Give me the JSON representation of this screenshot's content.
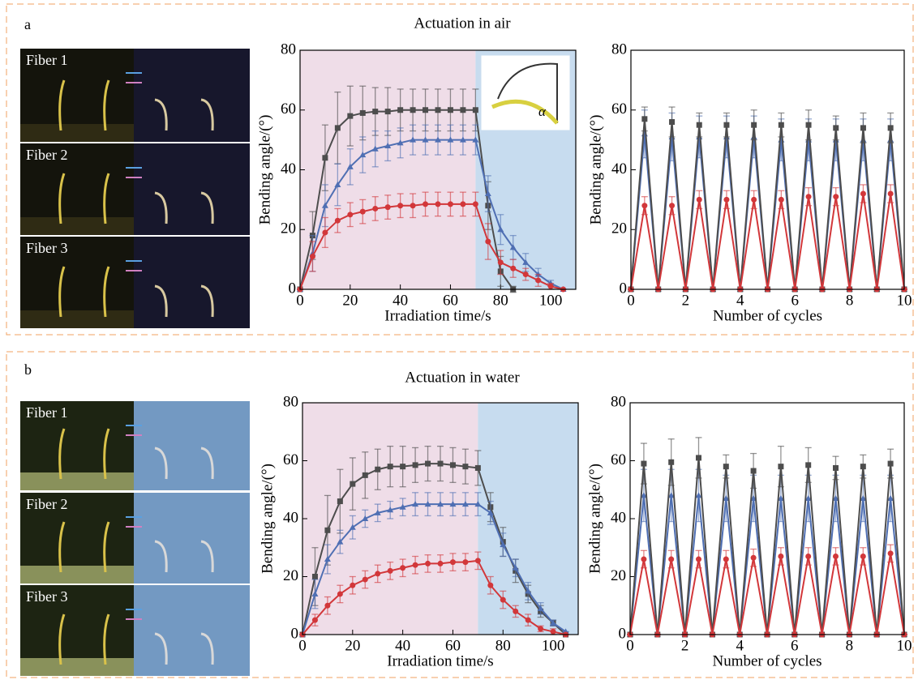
{
  "panels": [
    {
      "label": "a",
      "title": "Actuation in air",
      "photo_labels": [
        "Fiber 1",
        "Fiber 2",
        "Fiber 3"
      ]
    },
    {
      "label": "b",
      "title": "Actuation in water",
      "photo_labels": [
        "Fiber 1",
        "Fiber 2",
        "Fiber 3"
      ]
    }
  ],
  "chart_data": [
    {
      "type": "line",
      "xlabel": "Irradiation time/s",
      "ylabel": "Bending angle/(°)",
      "x": [
        0,
        5,
        10,
        15,
        20,
        25,
        30,
        35,
        40,
        45,
        50,
        55,
        60,
        65,
        70,
        75,
        80,
        85,
        90,
        95,
        100,
        105
      ],
      "xlim": [
        0,
        110
      ],
      "xticks": [
        0,
        20,
        40,
        60,
        80,
        100
      ],
      "ylim": [
        0,
        80
      ],
      "yticks": [
        0,
        20,
        40,
        60,
        80
      ],
      "shaded_regions": [
        {
          "from": 0,
          "to": 70,
          "color": "#efdde8"
        },
        {
          "from": 70,
          "to": 110,
          "color": "#c7dcef"
        }
      ],
      "inset_label": "α",
      "series": [
        {
          "color": "#4d4d4d",
          "marker": "square",
          "values": [
            0,
            18,
            44,
            54,
            58,
            59,
            59.5,
            59.5,
            60,
            60,
            60,
            60,
            60,
            60,
            60,
            28,
            6,
            0,
            null,
            null,
            null,
            null
          ],
          "errors": [
            0,
            8,
            11,
            12,
            10,
            9,
            8,
            8,
            7,
            7,
            7,
            7,
            7,
            7,
            7,
            8,
            5,
            1,
            null,
            null,
            null,
            null
          ]
        },
        {
          "color": "#4f6fb3",
          "marker": "triangle",
          "values": [
            0,
            12,
            28,
            35,
            41,
            45,
            47,
            48,
            49,
            50,
            50,
            50,
            50,
            50,
            50,
            32,
            20,
            14,
            9,
            5,
            2,
            0
          ],
          "errors": [
            0,
            6,
            7,
            7,
            6,
            6,
            6,
            5,
            5,
            5,
            5,
            5,
            5,
            5,
            5,
            6,
            5,
            4,
            3,
            2,
            1,
            0
          ]
        },
        {
          "color": "#d2373a",
          "marker": "circle",
          "values": [
            0,
            11,
            19,
            23,
            25,
            26,
            27,
            27.5,
            28,
            28,
            28.5,
            28.5,
            28.5,
            28.5,
            28.5,
            16,
            9,
            7,
            5,
            3,
            1,
            0
          ],
          "errors": [
            0,
            5,
            5,
            4,
            4,
            4,
            4,
            4,
            4,
            4,
            4,
            4,
            4,
            4,
            4,
            6,
            4,
            3,
            2,
            2,
            1,
            0
          ]
        }
      ]
    },
    {
      "type": "line",
      "xlabel": "Number of cycles",
      "ylabel": "Bending angle/(°)",
      "x": [
        0,
        0.5,
        1,
        1.5,
        2,
        2.5,
        3,
        3.5,
        4,
        4.5,
        5,
        5.5,
        6,
        6.5,
        7,
        7.5,
        8,
        8.5,
        9,
        9.5,
        10
      ],
      "xlim": [
        0,
        10
      ],
      "xticks": [
        0,
        2,
        4,
        6,
        8,
        10
      ],
      "ylim": [
        0,
        80
      ],
      "yticks": [
        0,
        20,
        40,
        60,
        80
      ],
      "series": [
        {
          "color": "#4f6fb3",
          "marker": "triangle",
          "values": [
            0,
            52,
            0,
            51,
            0,
            51,
            0,
            51,
            0,
            51,
            0,
            50,
            0,
            50,
            0,
            50,
            0,
            50,
            0,
            50,
            0
          ],
          "errors": [
            0,
            8,
            0,
            8,
            0,
            7,
            0,
            7,
            0,
            7,
            0,
            7,
            0,
            7,
            0,
            7,
            0,
            7,
            0,
            7,
            0
          ]
        },
        {
          "color": "#4d4d4d",
          "marker": "square",
          "values": [
            0,
            57,
            0,
            56,
            0,
            55,
            0,
            55,
            0,
            55,
            0,
            55,
            0,
            55,
            0,
            54,
            0,
            54,
            0,
            54,
            0
          ],
          "errors": [
            0,
            4,
            0,
            5,
            0,
            4,
            0,
            4,
            0,
            5,
            0,
            4,
            0,
            5,
            0,
            4,
            0,
            5,
            0,
            5,
            0
          ]
        },
        {
          "color": "#d2373a",
          "marker": "circle",
          "values": [
            0,
            28,
            0,
            28,
            0,
            30,
            0,
            30,
            0,
            30,
            0,
            30,
            0,
            31,
            0,
            31,
            0,
            32,
            0,
            32,
            0
          ],
          "errors": [
            0,
            3,
            0,
            3,
            0,
            3,
            0,
            3,
            0,
            3,
            0,
            3,
            0,
            3,
            0,
            3,
            0,
            3,
            0,
            3,
            0
          ]
        }
      ]
    },
    {
      "type": "line",
      "xlabel": "Irradiation time/s",
      "ylabel": "Bending angle/(°)",
      "x": [
        0,
        5,
        10,
        15,
        20,
        25,
        30,
        35,
        40,
        45,
        50,
        55,
        60,
        65,
        70,
        75,
        80,
        85,
        90,
        95,
        100,
        105
      ],
      "xlim": [
        0,
        110
      ],
      "xticks": [
        0,
        20,
        40,
        60,
        80,
        100
      ],
      "ylim": [
        0,
        80
      ],
      "yticks": [
        0,
        20,
        40,
        60,
        80
      ],
      "shaded_regions": [
        {
          "from": 0,
          "to": 70,
          "color": "#efdde8"
        },
        {
          "from": 70,
          "to": 110,
          "color": "#c7dcef"
        }
      ],
      "series": [
        {
          "color": "#4d4d4d",
          "marker": "square",
          "values": [
            0,
            20,
            36,
            46,
            52,
            55,
            57,
            58,
            58,
            58.5,
            59,
            59,
            58.5,
            58,
            57.5,
            44,
            32,
            22,
            14,
            8,
            4,
            0
          ],
          "errors": [
            0,
            10,
            12,
            11,
            9,
            8,
            7,
            7,
            7,
            6,
            6,
            6,
            6,
            6,
            6,
            5,
            5,
            4,
            3,
            2,
            1,
            0
          ]
        },
        {
          "color": "#4f6fb3",
          "marker": "triangle",
          "values": [
            0,
            14,
            26,
            32,
            37,
            40,
            42,
            43,
            44,
            45,
            45,
            45,
            45,
            45,
            45,
            42,
            31,
            23,
            15,
            9,
            4,
            1
          ],
          "errors": [
            0,
            5,
            5,
            4,
            4,
            3,
            3,
            3,
            3,
            4,
            4,
            4,
            4,
            4,
            4,
            4,
            4,
            3,
            3,
            2,
            1,
            0
          ]
        },
        {
          "color": "#d2373a",
          "marker": "circle",
          "values": [
            0,
            5,
            10,
            14,
            17,
            19,
            21,
            22,
            23,
            24,
            24.5,
            24.5,
            25,
            25,
            25.5,
            17,
            12,
            8,
            5,
            2,
            1,
            0
          ],
          "errors": [
            0,
            2,
            3,
            3,
            3,
            3,
            3,
            3,
            3,
            3,
            3,
            3,
            3,
            3,
            3,
            3,
            3,
            2,
            2,
            1,
            1,
            0
          ]
        }
      ]
    },
    {
      "type": "line",
      "xlabel": "Number of cycles",
      "ylabel": "Bending angle/(°)",
      "x": [
        0,
        0.5,
        1,
        1.5,
        2,
        2.5,
        3,
        3.5,
        4,
        4.5,
        5,
        5.5,
        6,
        6.5,
        7,
        7.5,
        8,
        8.5,
        9,
        9.5,
        10
      ],
      "xlim": [
        0,
        10
      ],
      "xticks": [
        0,
        2,
        4,
        6,
        8,
        10
      ],
      "ylim": [
        0,
        80
      ],
      "yticks": [
        0,
        20,
        40,
        60,
        80
      ],
      "series": [
        {
          "color": "#4f6fb3",
          "marker": "triangle",
          "values": [
            0,
            48,
            0,
            48,
            0,
            48,
            0,
            47,
            0,
            47,
            0,
            47,
            0,
            47,
            0,
            47,
            0,
            47,
            0,
            47,
            0
          ],
          "errors": [
            0,
            9,
            0,
            9,
            0,
            9,
            0,
            8,
            0,
            8,
            0,
            8,
            0,
            8,
            0,
            8,
            0,
            8,
            0,
            8,
            0
          ]
        },
        {
          "color": "#4d4d4d",
          "marker": "square",
          "values": [
            0,
            59,
            0,
            59.5,
            0,
            61,
            0,
            58,
            0,
            56.5,
            0,
            58,
            0,
            58.5,
            0,
            57.5,
            0,
            58,
            0,
            59,
            0
          ],
          "errors": [
            0,
            7,
            0,
            8,
            0,
            7,
            0,
            4,
            0,
            6,
            0,
            7,
            0,
            6,
            0,
            4,
            0,
            4,
            0,
            5,
            0
          ]
        },
        {
          "color": "#d2373a",
          "marker": "circle",
          "values": [
            0,
            26,
            0,
            26,
            0,
            26,
            0,
            26,
            0,
            26.5,
            0,
            27,
            0,
            27,
            0,
            27,
            0,
            27,
            0,
            28,
            0
          ],
          "errors": [
            0,
            3,
            0,
            3,
            0,
            3,
            0,
            3,
            0,
            3,
            0,
            3,
            0,
            3,
            0,
            3,
            0,
            3,
            0,
            3,
            0
          ]
        }
      ]
    }
  ]
}
